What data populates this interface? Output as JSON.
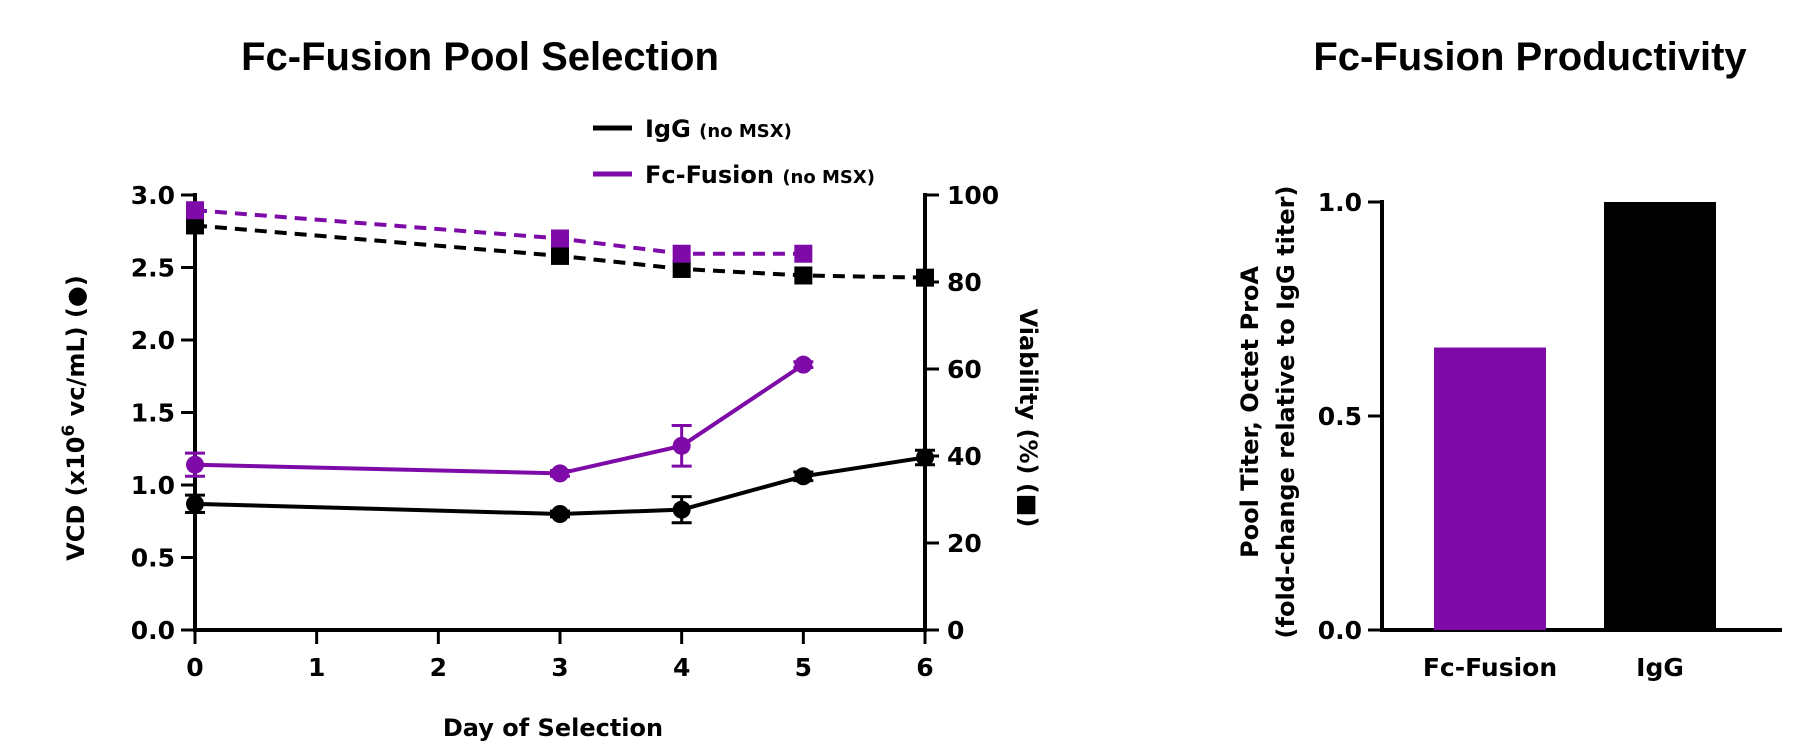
{
  "chart_data": [
    {
      "type": "line",
      "title": "Fc-Fusion Pool Selection",
      "xlabel": "Day of Selection",
      "ylabel_pre": "VCD (x10",
      "ylabel_sup": "6",
      "ylabel_post": " vc/mL) (●)",
      "y2label": "Viability (%) (■)",
      "xlim": [
        0,
        6
      ],
      "ylim": [
        0,
        3.0
      ],
      "y2lim": [
        0,
        100
      ],
      "xticks": [
        "0",
        "1",
        "2",
        "3",
        "4",
        "5",
        "6"
      ],
      "yticks": [
        "0.0",
        "0.5",
        "1.0",
        "1.5",
        "2.0",
        "2.5",
        "3.0"
      ],
      "y2ticks": [
        "0",
        "20",
        "40",
        "60",
        "80",
        "100"
      ],
      "colors": {
        "IgG": "#000000",
        "Fc-Fusion": "#7e0aa8"
      },
      "legend": [
        {
          "name": "IgG",
          "suffix": "(no MSX)",
          "color": "#000000"
        },
        {
          "name": "Fc-Fusion",
          "suffix": "(no MSX)",
          "color": "#7e0aa8"
        }
      ],
      "series": [
        {
          "name": "IgG",
          "metric": "VCD",
          "axis": "left",
          "marker": "circle",
          "x": [
            0,
            3,
            4,
            5,
            6
          ],
          "y": [
            0.87,
            0.8,
            0.83,
            1.06,
            1.19
          ],
          "err": [
            0.06,
            0.02,
            0.09,
            0.03,
            0.05
          ]
        },
        {
          "name": "Fc-Fusion",
          "metric": "VCD",
          "axis": "left",
          "marker": "circle",
          "x": [
            0,
            3,
            4,
            5
          ],
          "y": [
            1.14,
            1.08,
            1.27,
            1.83
          ],
          "err": [
            0.08,
            0.02,
            0.14,
            0.02
          ]
        },
        {
          "name": "IgG",
          "metric": "Viability",
          "axis": "right",
          "marker": "square",
          "dashed": true,
          "x": [
            0,
            3,
            4,
            5,
            6
          ],
          "y": [
            93,
            86,
            83,
            81.5,
            81
          ]
        },
        {
          "name": "Fc-Fusion",
          "metric": "Viability",
          "axis": "right",
          "marker": "square",
          "dashed": true,
          "x": [
            0,
            3,
            4,
            5
          ],
          "y": [
            96.5,
            90,
            86.5,
            86.5
          ]
        }
      ]
    },
    {
      "type": "bar",
      "title": "Fc-Fusion Productivity",
      "ylabel_line1": "Pool Titer, Octet ProA",
      "ylabel_line2": "(fold-change relative to IgG titer)",
      "categories": [
        "Fc-Fusion",
        "IgG"
      ],
      "values": [
        0.66,
        1.0
      ],
      "colors": [
        "#7e0aa8",
        "#000000"
      ],
      "ylim": [
        0,
        1.0
      ],
      "yticks": [
        "0.0",
        "0.5",
        "1.0"
      ]
    }
  ]
}
